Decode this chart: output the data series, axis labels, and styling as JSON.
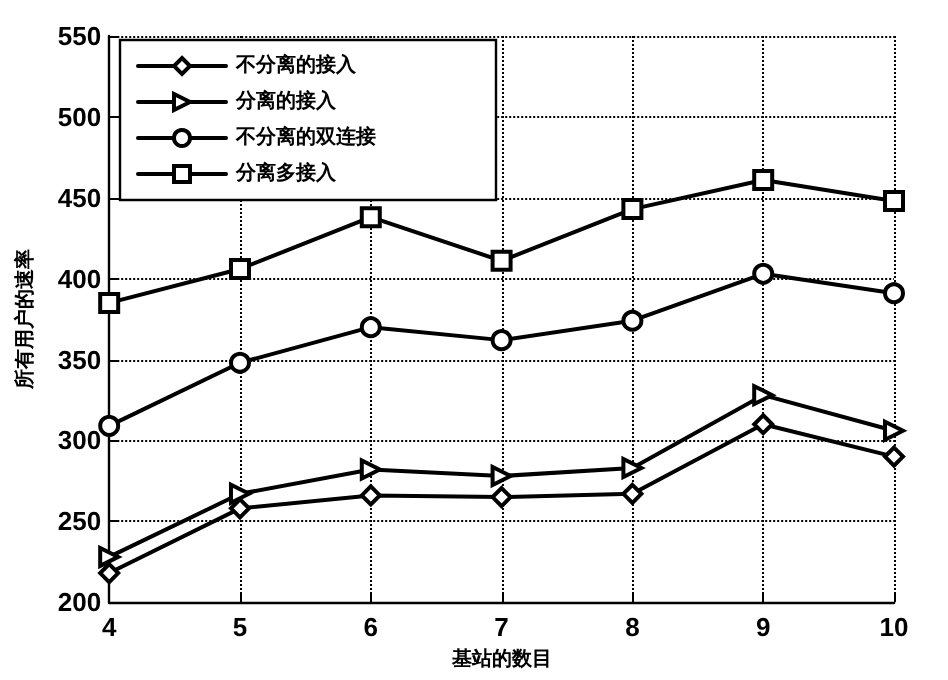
{
  "chart_data": {
    "type": "line",
    "xlabel": "基站的数目",
    "ylabel": "所有用户的速率",
    "x": [
      4,
      5,
      6,
      7,
      8,
      9,
      10
    ],
    "xlim": [
      4,
      10
    ],
    "xticks": [
      4,
      5,
      6,
      7,
      8,
      9,
      10
    ],
    "ylim": [
      200,
      550
    ],
    "yticks": [
      200,
      250,
      300,
      350,
      400,
      450,
      500,
      550
    ],
    "grid": true,
    "legend": "top left",
    "line_style": "solid",
    "series": [
      {
        "name": "不分离的接入",
        "color": "#000000",
        "marker": "diamond",
        "values": [
          218,
          258,
          266,
          265,
          267,
          310,
          290
        ]
      },
      {
        "name": "分离的接入",
        "color": "#000000",
        "marker": "triangle",
        "values": [
          228,
          267,
          282,
          278,
          283,
          328,
          306
        ]
      },
      {
        "name": "不分离的双连接",
        "color": "#000000",
        "marker": "circle",
        "values": [
          309,
          348,
          370,
          362,
          374,
          403,
          391
        ]
      },
      {
        "name": "分离多接入",
        "color": "#000000",
        "marker": "square",
        "values": [
          385,
          406,
          438,
          411,
          443,
          461,
          448
        ]
      }
    ]
  }
}
